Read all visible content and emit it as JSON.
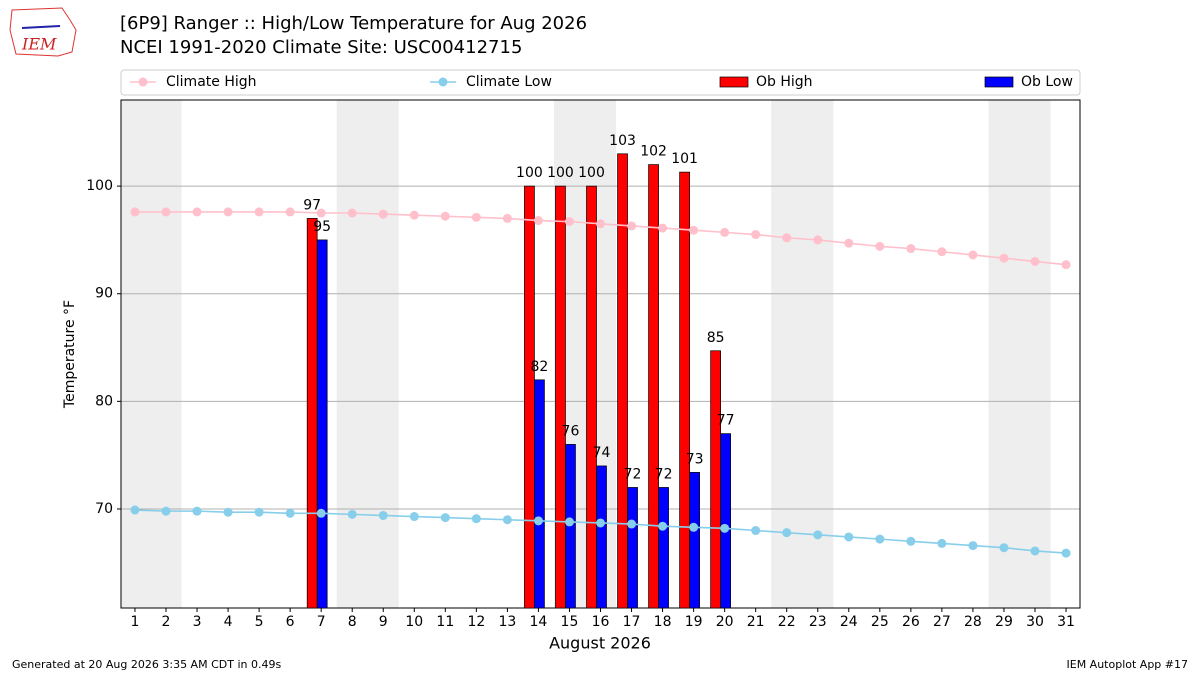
{
  "logo_text": "IEM",
  "footer_left": "Generated at 20 Aug 2026 3:35 AM CDT in 0.49s",
  "footer_right": "IEM Autoplot App #17",
  "chart_data": {
    "type": "bar_line",
    "title": "[6P9] Ranger :: High/Low Temperature for Aug 2026",
    "subtitle": "NCEI 1991-2020 Climate Site: USC00412715",
    "x_label": "August 2026",
    "y_label": "Temperature °F",
    "x": [
      1,
      2,
      3,
      4,
      5,
      6,
      7,
      8,
      9,
      10,
      11,
      12,
      13,
      14,
      15,
      16,
      17,
      18,
      19,
      20,
      21,
      22,
      23,
      24,
      25,
      26,
      27,
      28,
      29,
      30,
      31
    ],
    "xlim": [
      0.55,
      31.45
    ],
    "xticks": [
      1,
      2,
      3,
      4,
      5,
      6,
      7,
      8,
      9,
      10,
      11,
      12,
      13,
      14,
      15,
      16,
      17,
      18,
      19,
      20,
      21,
      22,
      23,
      24,
      25,
      26,
      27,
      28,
      29,
      30,
      31
    ],
    "ylim": [
      60.8,
      108
    ],
    "yticks": [
      70,
      80,
      90,
      100
    ],
    "grid": true,
    "series": [
      {
        "name": "Climate High",
        "type": "line",
        "color": "#ffc0cb",
        "values": [
          97.6,
          97.6,
          97.6,
          97.6,
          97.6,
          97.6,
          97.5,
          97.5,
          97.4,
          97.3,
          97.2,
          97.1,
          97.0,
          96.8,
          96.7,
          96.5,
          96.3,
          96.1,
          95.9,
          95.7,
          95.5,
          95.2,
          95.0,
          94.7,
          94.4,
          94.2,
          93.9,
          93.6,
          93.3,
          93.0,
          92.7
        ]
      },
      {
        "name": "Climate Low",
        "type": "line",
        "color": "#87ceeb",
        "values": [
          69.9,
          69.8,
          69.8,
          69.7,
          69.7,
          69.6,
          69.6,
          69.5,
          69.4,
          69.3,
          69.2,
          69.1,
          69.0,
          68.9,
          68.8,
          68.7,
          68.6,
          68.4,
          68.3,
          68.2,
          68.0,
          67.8,
          67.6,
          67.4,
          67.2,
          67.0,
          66.8,
          66.6,
          66.4,
          66.1,
          65.9
        ]
      },
      {
        "name": "Ob High",
        "type": "bar",
        "color": "#ff0000",
        "values": [
          null,
          null,
          null,
          null,
          null,
          null,
          97,
          null,
          null,
          null,
          null,
          null,
          null,
          100,
          100,
          100,
          103,
          102,
          101.3,
          84.7,
          null,
          null,
          null,
          null,
          null,
          null,
          null,
          null,
          null,
          null,
          null
        ],
        "value_labels": [
          null,
          null,
          null,
          null,
          null,
          null,
          "97",
          null,
          null,
          null,
          null,
          null,
          null,
          "100",
          "100",
          "100",
          "103",
          "102",
          "101",
          "85",
          null,
          null,
          null,
          null,
          null,
          null,
          null,
          null,
          null,
          null,
          null
        ]
      },
      {
        "name": "Ob Low",
        "type": "bar",
        "color": "#0000ff",
        "values": [
          null,
          null,
          null,
          null,
          null,
          null,
          95,
          null,
          null,
          null,
          null,
          null,
          null,
          82,
          76,
          74,
          72,
          72,
          73.4,
          77,
          null,
          null,
          null,
          null,
          null,
          null,
          null,
          null,
          null,
          null,
          null
        ],
        "value_labels": [
          null,
          null,
          null,
          null,
          null,
          null,
          "95",
          null,
          null,
          null,
          null,
          null,
          null,
          "82",
          "76",
          "74",
          "72",
          "72",
          "73",
          "77",
          null,
          null,
          null,
          null,
          null,
          null,
          null,
          null,
          null,
          null,
          null
        ]
      }
    ]
  }
}
